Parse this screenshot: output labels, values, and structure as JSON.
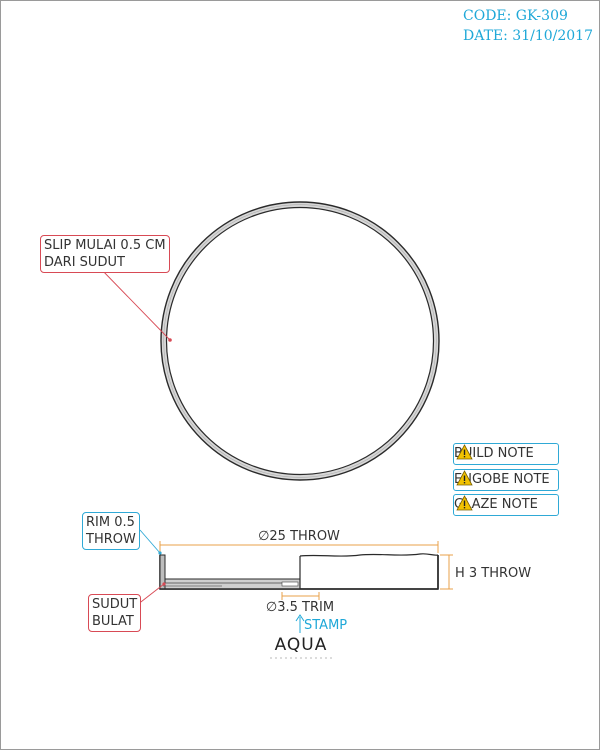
{
  "header": {
    "code": "CODE: GK-309",
    "date": "DATE: 31/10/2017"
  },
  "callouts": {
    "slip_line1": "SLIP MULAI 0.5 CM",
    "slip_line2": "DARI SUDUT",
    "rim_line1": "RIM 0.5",
    "rim_line2": "THROW",
    "sudut_line1": "SUDUT",
    "sudut_line2": "BULAT"
  },
  "notes": [
    {
      "label": "BUILD NOTE",
      "icon": "warning-icon"
    },
    {
      "label": "ENGOBE NOTE",
      "icon": "warning-icon"
    },
    {
      "label": "GLAZE NOTE",
      "icon": "warning-icon"
    }
  ],
  "dimensions": {
    "diameter": "∅25 THROW",
    "height": "H 3 THROW",
    "trim": "∅3.5 TRIM",
    "stamp": "STAMP"
  },
  "logo": {
    "word": "AQUA",
    "icon": "wave-logo-icon"
  },
  "colors": {
    "accent_blue": "#1fa8d8",
    "callout_red": "#d84a55",
    "dimension_orange": "#e8a04a",
    "warning_yellow": "#f2c200"
  }
}
